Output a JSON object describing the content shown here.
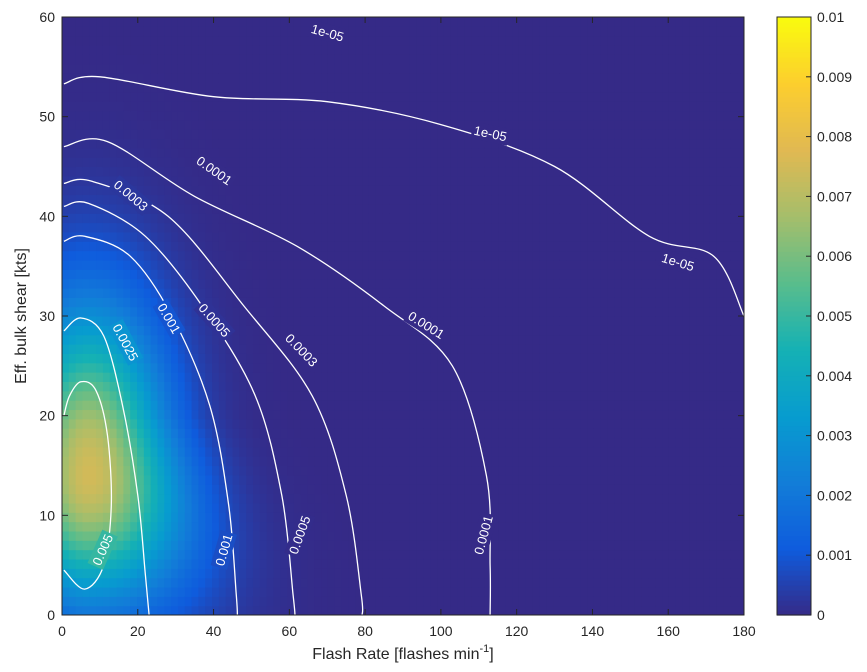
{
  "chart_data": {
    "type": "heatmap",
    "title": "",
    "xlabel": "Flash Rate [flashes min",
    "xlabel_superscript": "-1",
    "xlabel_suffix": "]",
    "ylabel": "Eff. bulk shear [kts]",
    "xlim": [
      0,
      180
    ],
    "ylim": [
      0,
      60
    ],
    "x_ticks": [
      "0",
      "20",
      "40",
      "60",
      "80",
      "100",
      "120",
      "140",
      "160",
      "180"
    ],
    "y_ticks": [
      "0",
      "10",
      "20",
      "30",
      "40",
      "50",
      "60"
    ],
    "colormap": "parula",
    "colorbar": {
      "range": [
        0,
        0.01
      ],
      "ticks": [
        "0",
        "0.001",
        "0.002",
        "0.003",
        "0.004",
        "0.005",
        "0.006",
        "0.007",
        "0.008",
        "0.009",
        "0.01"
      ]
    },
    "density_peak": {
      "x": 7,
      "y": 14,
      "value": 0.0075
    },
    "contours": [
      {
        "level": "0.005",
        "points": [
          [
            0.5,
            4.5
          ],
          [
            6,
            2.6
          ],
          [
            11,
            5
          ],
          [
            13,
            11
          ],
          [
            12,
            18
          ],
          [
            9,
            22.5
          ],
          [
            5,
            23.4
          ],
          [
            2,
            22
          ],
          [
            0.5,
            20
          ]
        ],
        "labels": [
          {
            "text": "0.005",
            "x": 11,
            "y": 6.5,
            "angle": -66
          }
        ]
      },
      {
        "level": "0.0025",
        "points": [
          [
            0.5,
            28.5
          ],
          [
            5,
            29.8
          ],
          [
            11,
            28
          ],
          [
            16,
            21
          ],
          [
            20,
            12
          ],
          [
            22,
            4
          ],
          [
            23,
            0
          ]
        ],
        "labels": [
          {
            "text": "0.0025",
            "x": 16.5,
            "y": 27.3,
            "angle": 62
          }
        ]
      },
      {
        "level": "0.001",
        "points": [
          [
            0.5,
            37.5
          ],
          [
            6,
            38
          ],
          [
            18,
            36
          ],
          [
            29,
            30
          ],
          [
            39,
            21
          ],
          [
            44,
            11
          ],
          [
            46,
            2
          ],
          [
            46.3,
            0
          ]
        ],
        "labels": [
          {
            "text": "0.001",
            "x": 28,
            "y": 29.7,
            "angle": 60
          },
          {
            "text": "0.001",
            "x": 43,
            "y": 6.5,
            "angle": -74
          }
        ]
      },
      {
        "level": "0.0005",
        "points": [
          [
            0.5,
            41
          ],
          [
            7,
            41.3
          ],
          [
            22,
            38
          ],
          [
            37,
            31
          ],
          [
            51,
            22
          ],
          [
            58,
            12
          ],
          [
            61,
            2
          ],
          [
            61.5,
            0
          ]
        ],
        "labels": [
          {
            "text": "0.0005",
            "x": 40,
            "y": 29.5,
            "angle": 48
          },
          {
            "text": "0.0005",
            "x": 63,
            "y": 8,
            "angle": -70
          }
        ]
      },
      {
        "level": "0.0003",
        "points": [
          [
            0.5,
            43.3
          ],
          [
            8,
            43.5
          ],
          [
            28,
            40
          ],
          [
            48,
            31
          ],
          [
            66,
            22
          ],
          [
            75,
            12
          ],
          [
            79,
            2
          ],
          [
            79.2,
            0
          ]
        ],
        "labels": [
          {
            "text": "0.0003",
            "x": 18,
            "y": 42,
            "angle": 40
          },
          {
            "text": "0.0003",
            "x": 63,
            "y": 26.5,
            "angle": 46
          }
        ]
      },
      {
        "level": "0.0001",
        "points": [
          [
            0.5,
            47
          ],
          [
            12,
            47.5
          ],
          [
            35,
            42
          ],
          [
            62,
            37
          ],
          [
            85,
            31
          ],
          [
            103,
            25
          ],
          [
            112,
            14
          ],
          [
            113,
            5
          ],
          [
            113,
            0
          ]
        ],
        "labels": [
          {
            "text": "0.0001",
            "x": 40,
            "y": 44.5,
            "angle": 35
          },
          {
            "text": "0.0001",
            "x": 96,
            "y": 29,
            "angle": 32
          },
          {
            "text": "0.0001",
            "x": 111.5,
            "y": 8,
            "angle": -75
          }
        ]
      },
      {
        "level": "1e-05",
        "points": [
          [
            0.5,
            53.3
          ],
          [
            10,
            54
          ],
          [
            40,
            52
          ],
          [
            70,
            51.5
          ],
          [
            100,
            49.2
          ],
          [
            130,
            45
          ],
          [
            155,
            38
          ],
          [
            172,
            36
          ],
          [
            180,
            30
          ]
        ],
        "labels": [
          {
            "text": "1e-05",
            "x": 70,
            "y": 58.3,
            "angle": 16
          },
          {
            "text": "1e-05",
            "x": 113,
            "y": 48.2,
            "angle": 12
          },
          {
            "text": "1e-05",
            "x": 162.5,
            "y": 35.3,
            "angle": 17
          }
        ]
      }
    ]
  }
}
